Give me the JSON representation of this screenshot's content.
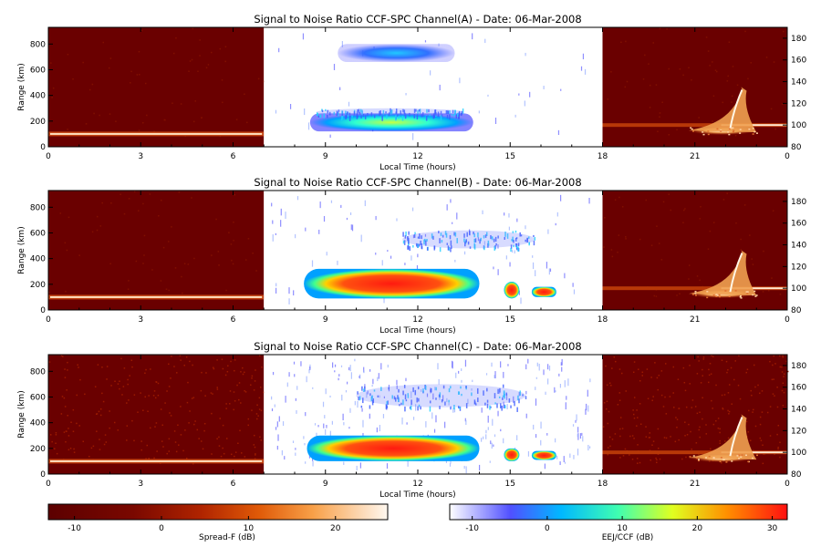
{
  "chart_data": [
    {
      "type": "heatmap",
      "title": "Signal to Noise Ratio CCF-SPC Channel(A) - Date: 06-Mar-2008",
      "xlabel": "Local Time (hours)",
      "ylabel": "Range (km)",
      "x_ticks": [
        "0",
        "3",
        "6",
        "9",
        "12",
        "15",
        "18",
        "21",
        "0"
      ],
      "y_ticks_left": [
        "0",
        "200",
        "400",
        "600",
        "800"
      ],
      "y_ticks_right": [
        "80",
        "100",
        "120",
        "140",
        "160",
        "180"
      ],
      "xlim_hours": [
        0,
        24
      ],
      "ylim_left": [
        0,
        930
      ],
      "ylim_right": [
        80,
        190
      ],
      "panels": [
        {
          "name": "Spread-F",
          "x_range": [
            0,
            7
          ],
          "colorscale": "Spread-F (dB)"
        },
        {
          "name": "EEJ/CCF",
          "x_range": [
            7,
            18
          ],
          "colorscale": "EEJ/CCF (dB)"
        },
        {
          "name": "Spread-F",
          "x_range": [
            18,
            24
          ],
          "colorscale": "Spread-F (dB)"
        }
      ],
      "features": [
        {
          "type": "echo-band",
          "x": [
            8.5,
            13.8
          ],
          "y": [
            120,
            260
          ],
          "level": "cyan-yellow",
          "approx_db": 10
        },
        {
          "type": "echo-band",
          "x": [
            8.7,
            13.5
          ],
          "y": [
            240,
            300
          ],
          "level": "blue",
          "approx_db": -5
        },
        {
          "type": "echo-band",
          "x": [
            9.4,
            13.2
          ],
          "y": [
            660,
            800
          ],
          "level": "blue-cyan",
          "approx_db": 0
        },
        {
          "type": "spread-f-plume",
          "x": [
            20.8,
            23.0
          ],
          "y_right": [
            95,
            135
          ],
          "level": "orange-white",
          "approx_db": 20
        }
      ]
    },
    {
      "type": "heatmap",
      "title": "Signal to Noise Ratio CCF-SPC Channel(B) - Date: 06-Mar-2008",
      "xlabel": "Local Time (hours)",
      "ylabel": "Range (km)",
      "x_ticks": [
        "0",
        "3",
        "6",
        "9",
        "12",
        "15",
        "18",
        "21",
        "0"
      ],
      "y_ticks_left": [
        "0",
        "200",
        "400",
        "600",
        "800"
      ],
      "y_ticks_right": [
        "80",
        "100",
        "120",
        "140",
        "160",
        "180"
      ],
      "xlim_hours": [
        0,
        24
      ],
      "ylim_left": [
        0,
        930
      ],
      "ylim_right": [
        80,
        190
      ],
      "features": [
        {
          "type": "echo-band",
          "x": [
            8.3,
            14.0
          ],
          "y": [
            90,
            320
          ],
          "level": "red",
          "approx_db": 30
        },
        {
          "type": "echo-band",
          "x": [
            11.5,
            15.8
          ],
          "y": [
            480,
            620
          ],
          "level": "blue",
          "approx_db": -5
        },
        {
          "type": "echo-blob",
          "x": [
            14.8,
            15.3
          ],
          "y": [
            90,
            220
          ],
          "level": "red",
          "approx_db": 28
        },
        {
          "type": "echo-blob",
          "x": [
            15.7,
            16.5
          ],
          "y": [
            100,
            180
          ],
          "level": "red",
          "approx_db": 25
        },
        {
          "type": "spread-f-plume",
          "x": [
            20.8,
            23.0
          ],
          "y_right": [
            95,
            135
          ],
          "level": "orange-white",
          "approx_db": 20
        }
      ]
    },
    {
      "type": "heatmap",
      "title": "Signal to Noise Ratio CCF-SPC Channel(C) - Date: 06-Mar-2008",
      "xlabel": "Local Time (hours)",
      "ylabel": "Range (km)",
      "x_ticks": [
        "0",
        "3",
        "6",
        "9",
        "12",
        "15",
        "18",
        "21",
        "0"
      ],
      "y_ticks_left": [
        "0",
        "200",
        "400",
        "600",
        "800"
      ],
      "y_ticks_right": [
        "80",
        "100",
        "120",
        "140",
        "160",
        "180"
      ],
      "xlim_hours": [
        0,
        24
      ],
      "ylim_left": [
        0,
        930
      ],
      "ylim_right": [
        80,
        190
      ],
      "features": [
        {
          "type": "echo-band",
          "x": [
            8.4,
            14.0
          ],
          "y": [
            100,
            300
          ],
          "level": "red",
          "approx_db": 30
        },
        {
          "type": "echo-band",
          "x": [
            10.0,
            15.5
          ],
          "y": [
            520,
            700
          ],
          "level": "blue",
          "approx_db": -5
        },
        {
          "type": "echo-blob",
          "x": [
            14.8,
            15.3
          ],
          "y": [
            100,
            200
          ],
          "level": "red",
          "approx_db": 25
        },
        {
          "type": "echo-blob",
          "x": [
            15.7,
            16.5
          ],
          "y": [
            110,
            180
          ],
          "level": "red",
          "approx_db": 22
        },
        {
          "type": "spread-f-plume",
          "x": [
            20.8,
            23.0
          ],
          "y_right": [
            95,
            135
          ],
          "level": "orange-white",
          "approx_db": 20
        }
      ]
    }
  ],
  "colorbars": [
    {
      "label": "Spread-F (dB)",
      "ticks": [
        "-10",
        "0",
        "10",
        "20"
      ],
      "range": [
        -13,
        26
      ],
      "colors": [
        "#6a0000",
        "#8b0e00",
        "#b82800",
        "#e8580a",
        "#f8a040",
        "#fff8f0"
      ]
    },
    {
      "label": "EEJ/CCF (dB)",
      "ticks": [
        "-10",
        "0",
        "10",
        "20",
        "30"
      ],
      "range": [
        -13,
        32
      ],
      "colors": [
        "#ffffff",
        "#4040ff",
        "#00c8ff",
        "#60ff60",
        "#ffff00",
        "#ff2020"
      ]
    }
  ]
}
